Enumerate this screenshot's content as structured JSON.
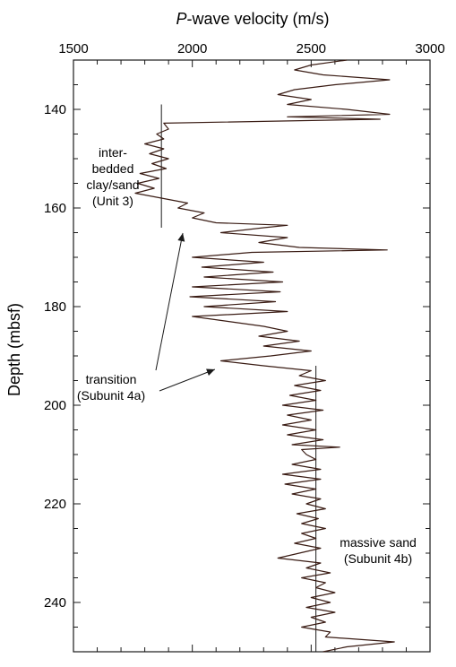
{
  "chart_data": {
    "type": "line",
    "title_prefix": "P",
    "title_suffix": "-wave velocity (m/s)",
    "xlabel": "P-wave velocity (m/s)",
    "ylabel": "Depth (mbsf)",
    "xlim": [
      1500,
      3000
    ],
    "ylim": [
      250,
      130
    ],
    "x_ticks": [
      1500,
      2000,
      2500,
      3000
    ],
    "y_ticks": [
      140,
      160,
      180,
      200,
      220,
      240
    ],
    "grid": false,
    "line_color": "#3a1c14",
    "annotations": [
      {
        "id": "unit3",
        "lines": [
          "inter-",
          "bedded",
          "clay/sand",
          "(Unit 3)"
        ],
        "points_to": [
          1880,
          150
        ]
      },
      {
        "id": "transition",
        "lines": [
          "transition",
          "(Subunit 4a)"
        ],
        "arrows_to": [
          [
            1960,
            164
          ],
          [
            2080,
            192
          ]
        ]
      },
      {
        "id": "unit4b",
        "lines": [
          "massive sand",
          "(Subunit 4b)"
        ],
        "points_to": [
          2580,
          229
        ]
      }
    ],
    "reference_lines": [
      {
        "x": 1870,
        "y_from": 139,
        "y_to": 164
      },
      {
        "x": 2520,
        "y_from": 192,
        "y_to": 250
      }
    ],
    "series": [
      {
        "values": [
          [
            2650,
            130
          ],
          [
            2500,
            131
          ],
          [
            2430,
            132
          ],
          [
            2550,
            133
          ],
          [
            2830,
            134
          ],
          [
            2600,
            135
          ],
          [
            2430,
            136
          ],
          [
            2360,
            137
          ],
          [
            2500,
            138
          ],
          [
            2400,
            139
          ],
          [
            2650,
            140
          ],
          [
            2830,
            141
          ],
          [
            2400,
            141.5
          ],
          [
            2790,
            142
          ],
          [
            1880,
            142.8
          ],
          [
            1900,
            144
          ],
          [
            1850,
            145
          ],
          [
            1880,
            146
          ],
          [
            1800,
            147
          ],
          [
            1880,
            148
          ],
          [
            1820,
            149
          ],
          [
            1900,
            150
          ],
          [
            1830,
            151
          ],
          [
            1890,
            152
          ],
          [
            1780,
            153
          ],
          [
            1860,
            154
          ],
          [
            1770,
            155
          ],
          [
            1840,
            156
          ],
          [
            1760,
            157
          ],
          [
            1870,
            158
          ],
          [
            1980,
            159
          ],
          [
            1940,
            160
          ],
          [
            2050,
            161
          ],
          [
            2000,
            162
          ],
          [
            2100,
            163
          ],
          [
            2400,
            163.5
          ],
          [
            2300,
            164
          ],
          [
            2120,
            165
          ],
          [
            2400,
            166
          ],
          [
            2280,
            167
          ],
          [
            2450,
            168
          ],
          [
            2820,
            168.5
          ],
          [
            2250,
            169
          ],
          [
            2000,
            170
          ],
          [
            2300,
            171
          ],
          [
            2040,
            172
          ],
          [
            2340,
            173
          ],
          [
            2050,
            174
          ],
          [
            2380,
            175
          ],
          [
            2000,
            176
          ],
          [
            2370,
            177
          ],
          [
            1990,
            178
          ],
          [
            2350,
            179
          ],
          [
            2050,
            180
          ],
          [
            2400,
            181
          ],
          [
            2000,
            182
          ],
          [
            2150,
            183
          ],
          [
            2300,
            184
          ],
          [
            2400,
            185
          ],
          [
            2280,
            186
          ],
          [
            2450,
            187
          ],
          [
            2300,
            188
          ],
          [
            2500,
            189
          ],
          [
            2330,
            190
          ],
          [
            2120,
            191
          ],
          [
            2300,
            192
          ],
          [
            2500,
            193
          ],
          [
            2450,
            194
          ],
          [
            2560,
            195
          ],
          [
            2430,
            196
          ],
          [
            2540,
            197
          ],
          [
            2410,
            198
          ],
          [
            2520,
            199
          ],
          [
            2380,
            200
          ],
          [
            2550,
            201
          ],
          [
            2400,
            202
          ],
          [
            2500,
            203
          ],
          [
            2380,
            204
          ],
          [
            2520,
            205
          ],
          [
            2400,
            206
          ],
          [
            2550,
            207
          ],
          [
            2420,
            208
          ],
          [
            2620,
            208.5
          ],
          [
            2460,
            209
          ],
          [
            2480,
            210
          ],
          [
            2520,
            211
          ],
          [
            2420,
            212
          ],
          [
            2540,
            213
          ],
          [
            2380,
            214
          ],
          [
            2540,
            215
          ],
          [
            2390,
            216
          ],
          [
            2520,
            217
          ],
          [
            2420,
            218
          ],
          [
            2540,
            219
          ],
          [
            2480,
            220
          ],
          [
            2560,
            221
          ],
          [
            2440,
            222
          ],
          [
            2530,
            223
          ],
          [
            2460,
            224
          ],
          [
            2560,
            225
          ],
          [
            2460,
            226
          ],
          [
            2520,
            227
          ],
          [
            2430,
            228
          ],
          [
            2540,
            229
          ],
          [
            2450,
            230
          ],
          [
            2360,
            231
          ],
          [
            2540,
            232
          ],
          [
            2480,
            233
          ],
          [
            2580,
            234
          ],
          [
            2460,
            235
          ],
          [
            2560,
            236
          ],
          [
            2520,
            237
          ],
          [
            2600,
            238
          ],
          [
            2500,
            239
          ],
          [
            2580,
            240
          ],
          [
            2480,
            241
          ],
          [
            2600,
            242
          ],
          [
            2500,
            243
          ],
          [
            2560,
            244
          ],
          [
            2460,
            245
          ],
          [
            2580,
            246
          ],
          [
            2560,
            247
          ],
          [
            2850,
            248
          ],
          [
            2650,
            249
          ],
          [
            2550,
            250
          ]
        ]
      }
    ]
  }
}
